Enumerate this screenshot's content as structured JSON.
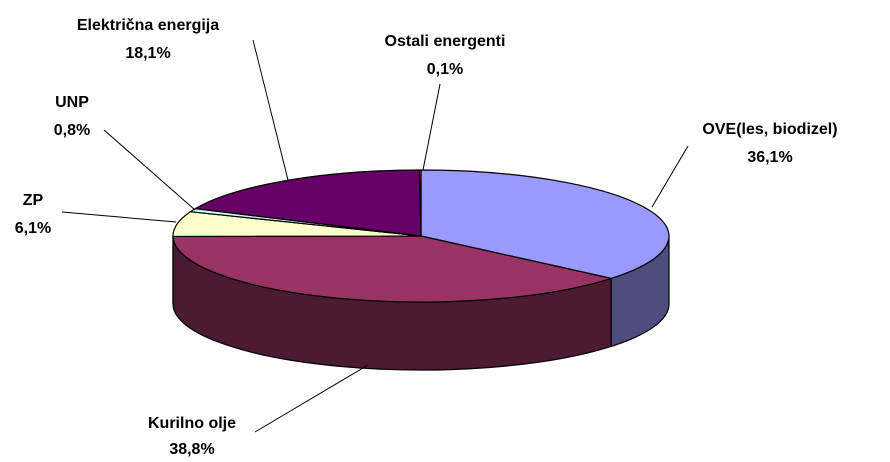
{
  "chart_data": {
    "type": "pie3d",
    "categories": [
      "OVE(les, biodizel)",
      "Kurilno olje",
      "ZP",
      "UNP",
      "Električna energija",
      "Ostali energenti"
    ],
    "values": [
      36.1,
      38.8,
      6.1,
      0.8,
      18.1,
      0.1
    ],
    "value_labels": [
      "36,1%",
      "38,8%",
      "6,1%",
      "0,8%",
      "18,1%",
      "0,1%"
    ],
    "colors": [
      "#9999ff",
      "#993366",
      "#ffffcc",
      "#ccffff",
      "#660066",
      "#ff8080"
    ]
  }
}
